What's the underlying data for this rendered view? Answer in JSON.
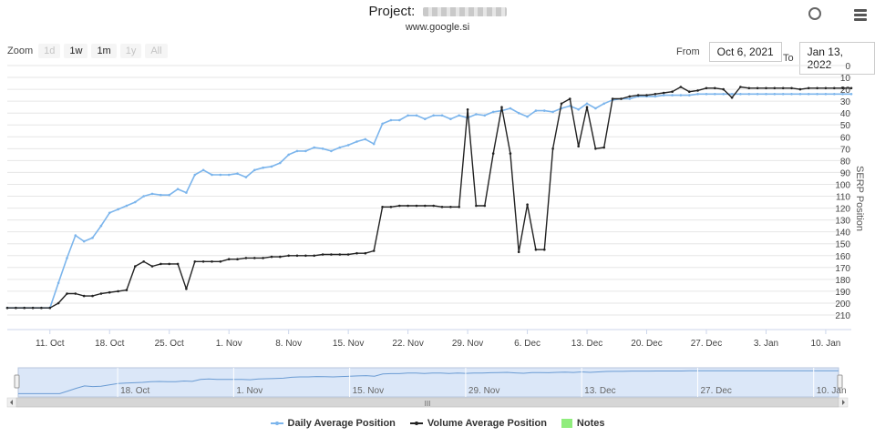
{
  "header": {
    "project_label": "Project:",
    "domain": "www.google.si"
  },
  "toolbar": {
    "zoom_label": "Zoom",
    "zoom_buttons": [
      {
        "label": "1d",
        "state": "disabled"
      },
      {
        "label": "1w",
        "state": "active"
      },
      {
        "label": "1m",
        "state": "active"
      },
      {
        "label": "1y",
        "state": "disabled"
      },
      {
        "label": "All",
        "state": "disabled"
      }
    ],
    "from_label": "From",
    "from_value": "Oct 6, 2021",
    "to_label": "To",
    "to_value": "Jan 13, 2022"
  },
  "chart_data": {
    "type": "line",
    "ylabel": "SERP Position",
    "y_reversed": true,
    "ylim": [
      0,
      210
    ],
    "yticks": [
      0,
      10,
      20,
      30,
      40,
      50,
      60,
      70,
      80,
      90,
      100,
      110,
      120,
      130,
      140,
      150,
      160,
      170,
      180,
      190,
      200,
      210
    ],
    "x_start": "2021-10-06",
    "x_end": "2022-01-13",
    "xtick_labels": [
      {
        "date": "2021-10-11",
        "label": "11. Oct"
      },
      {
        "date": "2021-10-18",
        "label": "18. Oct"
      },
      {
        "date": "2021-10-25",
        "label": "25. Oct"
      },
      {
        "date": "2021-11-01",
        "label": "1. Nov"
      },
      {
        "date": "2021-11-08",
        "label": "8. Nov"
      },
      {
        "date": "2021-11-15",
        "label": "15. Nov"
      },
      {
        "date": "2021-11-22",
        "label": "22. Nov"
      },
      {
        "date": "2021-11-29",
        "label": "29. Nov"
      },
      {
        "date": "2021-12-06",
        "label": "6. Dec"
      },
      {
        "date": "2021-12-13",
        "label": "13. Dec"
      },
      {
        "date": "2021-12-20",
        "label": "20. Dec"
      },
      {
        "date": "2021-12-27",
        "label": "27. Dec"
      },
      {
        "date": "2022-01-03",
        "label": "3. Jan"
      },
      {
        "date": "2022-01-10",
        "label": "10. Jan"
      }
    ],
    "navigator_labels": [
      {
        "date": "2021-10-18",
        "label": "18. Oct"
      },
      {
        "date": "2021-11-01",
        "label": "1. Nov"
      },
      {
        "date": "2021-11-15",
        "label": "15. Nov"
      },
      {
        "date": "2021-11-29",
        "label": "29. Nov"
      },
      {
        "date": "2021-12-13",
        "label": "13. Dec"
      },
      {
        "date": "2021-12-27",
        "label": "27. Dec"
      },
      {
        "date": "2022-01-10",
        "label": "10. Jan"
      }
    ],
    "series": [
      {
        "name": "Daily Average Position",
        "color": "#7cb5ec",
        "points": [
          [
            "2021-10-06",
            204
          ],
          [
            "2021-10-07",
            204
          ],
          [
            "2021-10-08",
            204
          ],
          [
            "2021-10-09",
            204
          ],
          [
            "2021-10-10",
            204
          ],
          [
            "2021-10-11",
            204
          ],
          [
            "2021-10-12",
            183
          ],
          [
            "2021-10-13",
            162
          ],
          [
            "2021-10-14",
            143
          ],
          [
            "2021-10-15",
            148
          ],
          [
            "2021-10-16",
            145
          ],
          [
            "2021-10-17",
            135
          ],
          [
            "2021-10-18",
            124
          ],
          [
            "2021-10-19",
            121
          ],
          [
            "2021-10-20",
            118
          ],
          [
            "2021-10-21",
            115
          ],
          [
            "2021-10-22",
            110
          ],
          [
            "2021-10-23",
            108
          ],
          [
            "2021-10-24",
            109
          ],
          [
            "2021-10-25",
            109
          ],
          [
            "2021-10-26",
            104
          ],
          [
            "2021-10-27",
            107
          ],
          [
            "2021-10-28",
            92
          ],
          [
            "2021-10-29",
            88
          ],
          [
            "2021-10-30",
            92
          ],
          [
            "2021-10-31",
            92
          ],
          [
            "2021-11-01",
            92
          ],
          [
            "2021-11-02",
            91
          ],
          [
            "2021-11-03",
            94
          ],
          [
            "2021-11-04",
            88
          ],
          [
            "2021-11-05",
            86
          ],
          [
            "2021-11-06",
            85
          ],
          [
            "2021-11-07",
            82
          ],
          [
            "2021-11-08",
            75
          ],
          [
            "2021-11-09",
            72
          ],
          [
            "2021-11-10",
            72
          ],
          [
            "2021-11-11",
            69
          ],
          [
            "2021-11-12",
            70
          ],
          [
            "2021-11-13",
            72
          ],
          [
            "2021-11-14",
            69
          ],
          [
            "2021-11-15",
            67
          ],
          [
            "2021-11-16",
            64
          ],
          [
            "2021-11-17",
            62
          ],
          [
            "2021-11-18",
            66
          ],
          [
            "2021-11-19",
            49
          ],
          [
            "2021-11-20",
            46
          ],
          [
            "2021-11-21",
            46
          ],
          [
            "2021-11-22",
            42
          ],
          [
            "2021-11-23",
            42
          ],
          [
            "2021-11-24",
            45
          ],
          [
            "2021-11-25",
            42
          ],
          [
            "2021-11-26",
            42
          ],
          [
            "2021-11-27",
            45
          ],
          [
            "2021-11-28",
            42
          ],
          [
            "2021-11-29",
            44
          ],
          [
            "2021-11-30",
            41
          ],
          [
            "2021-12-01",
            42
          ],
          [
            "2021-12-02",
            39
          ],
          [
            "2021-12-03",
            38
          ],
          [
            "2021-12-04",
            36
          ],
          [
            "2021-12-05",
            40
          ],
          [
            "2021-12-06",
            43
          ],
          [
            "2021-12-07",
            38
          ],
          [
            "2021-12-08",
            38
          ],
          [
            "2021-12-09",
            39
          ],
          [
            "2021-12-10",
            36
          ],
          [
            "2021-12-11",
            34
          ],
          [
            "2021-12-12",
            37
          ],
          [
            "2021-12-13",
            32
          ],
          [
            "2021-12-14",
            36
          ],
          [
            "2021-12-15",
            32
          ],
          [
            "2021-12-16",
            29
          ],
          [
            "2021-12-17",
            28
          ],
          [
            "2021-12-18",
            28
          ],
          [
            "2021-12-19",
            26
          ],
          [
            "2021-12-20",
            26
          ],
          [
            "2021-12-21",
            26
          ],
          [
            "2021-12-22",
            25
          ],
          [
            "2021-12-23",
            25
          ],
          [
            "2021-12-24",
            25
          ],
          [
            "2021-12-25",
            25
          ],
          [
            "2021-12-26",
            24
          ],
          [
            "2021-12-27",
            24
          ],
          [
            "2021-12-28",
            24
          ],
          [
            "2021-12-29",
            24
          ],
          [
            "2021-12-30",
            24
          ],
          [
            "2021-12-31",
            24
          ],
          [
            "2022-01-01",
            24
          ],
          [
            "2022-01-02",
            24
          ],
          [
            "2022-01-03",
            24
          ],
          [
            "2022-01-04",
            24
          ],
          [
            "2022-01-05",
            24
          ],
          [
            "2022-01-06",
            24
          ],
          [
            "2022-01-07",
            24
          ],
          [
            "2022-01-08",
            24
          ],
          [
            "2022-01-09",
            24
          ],
          [
            "2022-01-10",
            24
          ],
          [
            "2022-01-11",
            24
          ],
          [
            "2022-01-12",
            24
          ],
          [
            "2022-01-13",
            24
          ]
        ]
      },
      {
        "name": "Volume Average Position",
        "color": "#222222",
        "points": [
          [
            "2021-10-06",
            204
          ],
          [
            "2021-10-07",
            204
          ],
          [
            "2021-10-08",
            204
          ],
          [
            "2021-10-09",
            204
          ],
          [
            "2021-10-10",
            204
          ],
          [
            "2021-10-11",
            204
          ],
          [
            "2021-10-12",
            200
          ],
          [
            "2021-10-13",
            192
          ],
          [
            "2021-10-14",
            192
          ],
          [
            "2021-10-15",
            194
          ],
          [
            "2021-10-16",
            194
          ],
          [
            "2021-10-17",
            192
          ],
          [
            "2021-10-18",
            191
          ],
          [
            "2021-10-19",
            190
          ],
          [
            "2021-10-20",
            189
          ],
          [
            "2021-10-21",
            169
          ],
          [
            "2021-10-22",
            165
          ],
          [
            "2021-10-23",
            169
          ],
          [
            "2021-10-24",
            167
          ],
          [
            "2021-10-25",
            167
          ],
          [
            "2021-10-26",
            167
          ],
          [
            "2021-10-27",
            188
          ],
          [
            "2021-10-28",
            165
          ],
          [
            "2021-10-29",
            165
          ],
          [
            "2021-10-30",
            165
          ],
          [
            "2021-10-31",
            165
          ],
          [
            "2021-11-01",
            163
          ],
          [
            "2021-11-02",
            163
          ],
          [
            "2021-11-03",
            162
          ],
          [
            "2021-11-04",
            162
          ],
          [
            "2021-11-05",
            162
          ],
          [
            "2021-11-06",
            161
          ],
          [
            "2021-11-07",
            161
          ],
          [
            "2021-11-08",
            160
          ],
          [
            "2021-11-09",
            160
          ],
          [
            "2021-11-10",
            160
          ],
          [
            "2021-11-11",
            160
          ],
          [
            "2021-11-12",
            159
          ],
          [
            "2021-11-13",
            159
          ],
          [
            "2021-11-14",
            159
          ],
          [
            "2021-11-15",
            159
          ],
          [
            "2021-11-16",
            158
          ],
          [
            "2021-11-17",
            158
          ],
          [
            "2021-11-18",
            156
          ],
          [
            "2021-11-19",
            119
          ],
          [
            "2021-11-20",
            119
          ],
          [
            "2021-11-21",
            118
          ],
          [
            "2021-11-22",
            118
          ],
          [
            "2021-11-23",
            118
          ],
          [
            "2021-11-24",
            118
          ],
          [
            "2021-11-25",
            118
          ],
          [
            "2021-11-26",
            119
          ],
          [
            "2021-11-27",
            119
          ],
          [
            "2021-11-28",
            119
          ],
          [
            "2021-11-29",
            37
          ],
          [
            "2021-11-30",
            118
          ],
          [
            "2021-12-01",
            118
          ],
          [
            "2021-12-02",
            74
          ],
          [
            "2021-12-03",
            35
          ],
          [
            "2021-12-04",
            74
          ],
          [
            "2021-12-05",
            157
          ],
          [
            "2021-12-06",
            117
          ],
          [
            "2021-12-07",
            155
          ],
          [
            "2021-12-08",
            155
          ],
          [
            "2021-12-09",
            70
          ],
          [
            "2021-12-10",
            32
          ],
          [
            "2021-12-11",
            28
          ],
          [
            "2021-12-12",
            68
          ],
          [
            "2021-12-13",
            35
          ],
          [
            "2021-12-14",
            70
          ],
          [
            "2021-12-15",
            69
          ],
          [
            "2021-12-16",
            28
          ],
          [
            "2021-12-17",
            28
          ],
          [
            "2021-12-18",
            26
          ],
          [
            "2021-12-19",
            25
          ],
          [
            "2021-12-20",
            25
          ],
          [
            "2021-12-21",
            24
          ],
          [
            "2021-12-22",
            23
          ],
          [
            "2021-12-23",
            22
          ],
          [
            "2021-12-24",
            18
          ],
          [
            "2021-12-25",
            22
          ],
          [
            "2021-12-26",
            21
          ],
          [
            "2021-12-27",
            19
          ],
          [
            "2021-12-28",
            19
          ],
          [
            "2021-12-29",
            20
          ],
          [
            "2021-12-30",
            27
          ],
          [
            "2021-12-31",
            18
          ],
          [
            "2022-01-01",
            19
          ],
          [
            "2022-01-02",
            19
          ],
          [
            "2022-01-03",
            19
          ],
          [
            "2022-01-04",
            19
          ],
          [
            "2022-01-05",
            19
          ],
          [
            "2022-01-06",
            19
          ],
          [
            "2022-01-07",
            20
          ],
          [
            "2022-01-08",
            19
          ],
          [
            "2022-01-09",
            19
          ],
          [
            "2022-01-10",
            19
          ],
          [
            "2022-01-11",
            19
          ],
          [
            "2022-01-12",
            19
          ],
          [
            "2022-01-13",
            19
          ]
        ]
      }
    ],
    "legend": [
      {
        "name": "Daily Average Position",
        "color": "#7cb5ec",
        "symbol": "line"
      },
      {
        "name": "Volume Average Position",
        "color": "#222222",
        "symbol": "line"
      },
      {
        "name": "Notes",
        "color": "#90ed7d",
        "symbol": "square"
      }
    ],
    "legend_position": "bottom",
    "grid": true,
    "navigator_scrollbar_label": "III"
  }
}
